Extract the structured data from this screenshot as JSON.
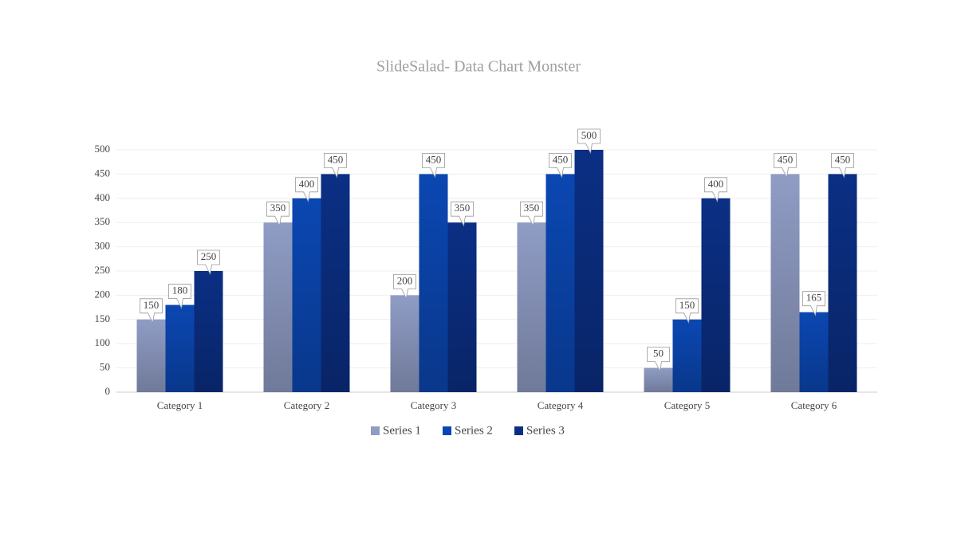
{
  "chart_data": {
    "type": "bar",
    "title": "SlideSalad- Data Chart Monster",
    "categories": [
      "Category 1",
      "Category 2",
      "Category 3",
      "Category 4",
      "Category 5",
      "Category 6"
    ],
    "series": [
      {
        "name": "Series 1",
        "color": "#8f9cc4",
        "values": [
          150,
          350,
          200,
          350,
          50,
          450
        ]
      },
      {
        "name": "Series 2",
        "color": "#0b47b2",
        "values": [
          180,
          400,
          450,
          450,
          150,
          165
        ]
      },
      {
        "name": "Series 3",
        "color": "#0b2f84",
        "values": [
          250,
          450,
          350,
          500,
          400,
          450
        ]
      }
    ],
    "ylim": [
      0,
      500
    ],
    "yticks": [
      0,
      50,
      100,
      150,
      200,
      250,
      300,
      350,
      400,
      450,
      500
    ],
    "grid": true,
    "legend": "bottom",
    "data_labels": true
  }
}
